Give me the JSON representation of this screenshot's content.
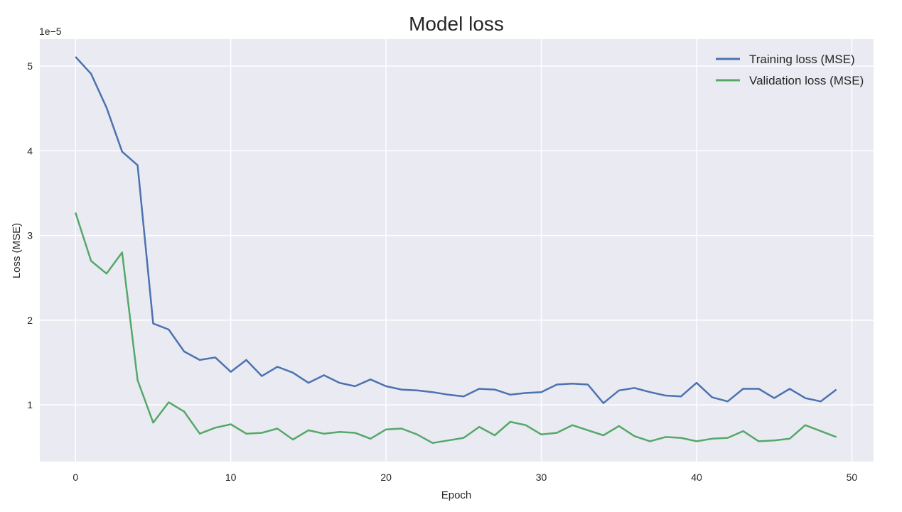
{
  "chart_data": {
    "type": "line",
    "title": "Model loss",
    "xlabel": "Epoch",
    "ylabel": "Loss (MSE)",
    "y_scale_label": "1e−5",
    "y_scale": 1e-05,
    "xlim": [
      -2.3,
      51.4
    ],
    "ylim": [
      0.33,
      5.32
    ],
    "x_ticks": [
      0,
      10,
      20,
      30,
      40,
      50
    ],
    "y_ticks": [
      1,
      2,
      3,
      4,
      5
    ],
    "grid": true,
    "legend_position": "top-right",
    "background": "#eaeaf2",
    "x": [
      0,
      1,
      2,
      3,
      4,
      5,
      6,
      7,
      8,
      9,
      10,
      11,
      12,
      13,
      14,
      15,
      16,
      17,
      18,
      19,
      20,
      21,
      22,
      23,
      24,
      25,
      26,
      27,
      28,
      29,
      30,
      31,
      32,
      33,
      34,
      35,
      36,
      37,
      38,
      39,
      40,
      41,
      42,
      43,
      44,
      45,
      46,
      47,
      48,
      49
    ],
    "series": [
      {
        "name": "Training loss (MSE)",
        "color": "#4c72b0",
        "values": [
          5.11,
          4.91,
          4.51,
          3.99,
          3.83,
          1.96,
          1.89,
          1.63,
          1.53,
          1.56,
          1.39,
          1.53,
          1.34,
          1.45,
          1.38,
          1.26,
          1.35,
          1.26,
          1.22,
          1.3,
          1.22,
          1.18,
          1.17,
          1.15,
          1.12,
          1.1,
          1.19,
          1.18,
          1.12,
          1.14,
          1.15,
          1.24,
          1.25,
          1.24,
          1.02,
          1.17,
          1.2,
          1.15,
          1.11,
          1.1,
          1.26,
          1.09,
          1.04,
          1.19,
          1.19,
          1.08,
          1.19,
          1.08,
          1.04,
          1.18
        ]
      },
      {
        "name": "Validation loss (MSE)",
        "color": "#55a868",
        "values": [
          3.27,
          2.7,
          2.55,
          2.8,
          1.29,
          0.79,
          1.03,
          0.92,
          0.66,
          0.73,
          0.77,
          0.66,
          0.67,
          0.72,
          0.59,
          0.7,
          0.66,
          0.68,
          0.67,
          0.6,
          0.71,
          0.72,
          0.65,
          0.55,
          0.58,
          0.61,
          0.74,
          0.64,
          0.8,
          0.76,
          0.65,
          0.67,
          0.76,
          0.7,
          0.64,
          0.75,
          0.63,
          0.57,
          0.62,
          0.61,
          0.57,
          0.6,
          0.61,
          0.69,
          0.57,
          0.58,
          0.6,
          0.76,
          0.69,
          0.62
        ]
      }
    ]
  }
}
